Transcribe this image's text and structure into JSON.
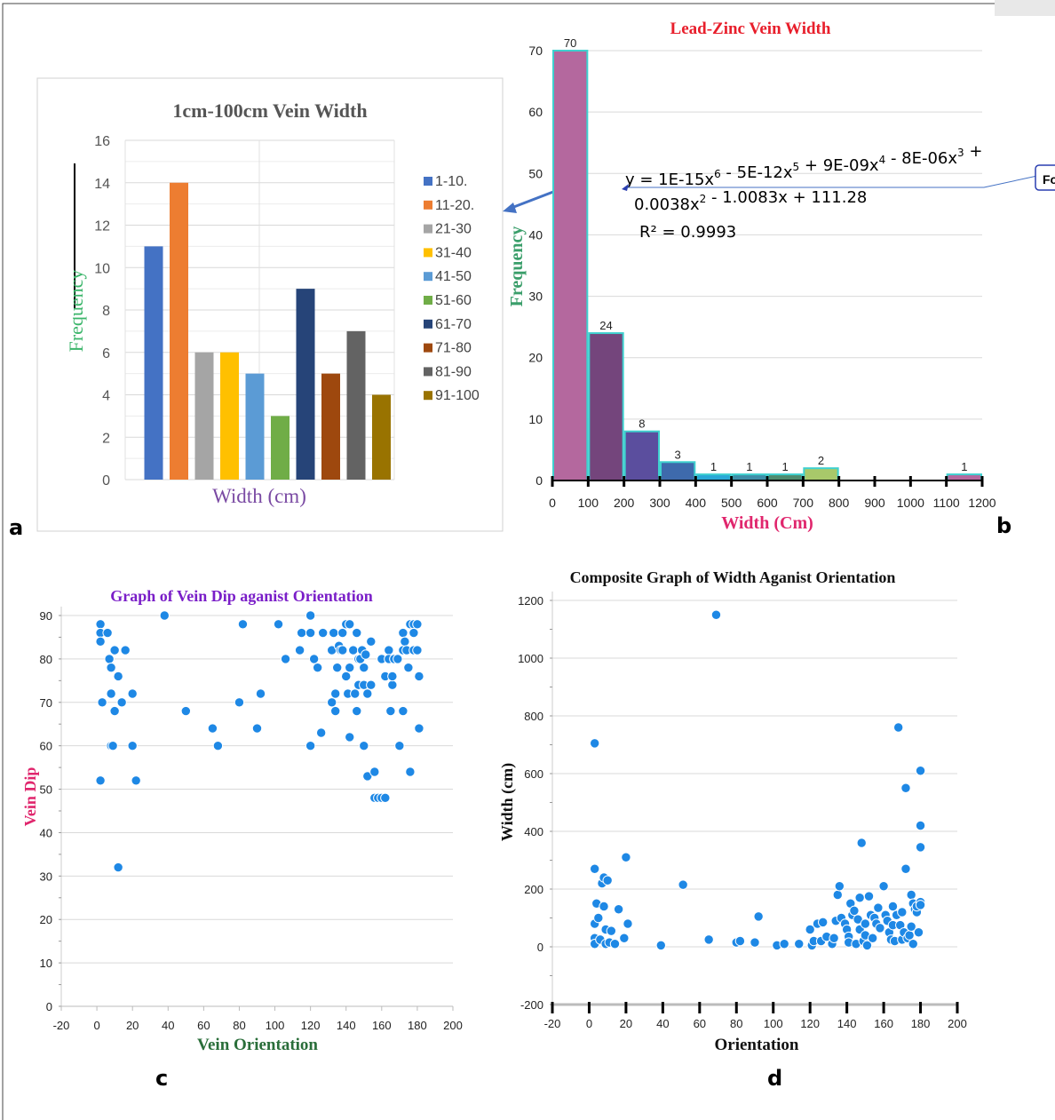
{
  "panel_labels": [
    "a",
    "b",
    "c",
    "d"
  ],
  "colors": {
    "a_bars": [
      "#4472c4",
      "#ed7d31",
      "#a5a5a5",
      "#ffc000",
      "#5b9bd5",
      "#70ad47",
      "#264478",
      "#9e480e",
      "#636363",
      "#997300"
    ],
    "b_bars": [
      "#b4689e",
      "#74457c",
      "#5b4e9e",
      "#3e6aac",
      "#29a8d6",
      "#3e8ea8",
      "#4e8a6e",
      "#a8c86a",
      "#67c2a6",
      "#5aaad6",
      "#7ac0b6",
      "#b4689e"
    ],
    "b_bar_edge": "#3fd0cf",
    "scatter_point": "#1e88e5",
    "b_title": "#e81e2b",
    "b_axis_label": "#e0266d",
    "b_ylabel": "#3a9e6a",
    "a_title": "#555555",
    "a_ylabel": "#3bb56a",
    "a_xlabel": "#7a4aa3",
    "c_title": "#7a1ec8",
    "c_ylabel": "#e0266d",
    "c_xlabel": "#2a6e3a",
    "d_title": "#111111",
    "arrow": "#4472c4"
  },
  "chart_data": [
    {
      "id": "a",
      "type": "bar",
      "title": "1cm-100cm Vein Width",
      "xlabel": "Width (cm)",
      "ylabel": "Frequency",
      "ylim": [
        0,
        16
      ],
      "yticks": [
        "0",
        "2",
        "4",
        "6",
        "8",
        "10",
        "12",
        "14",
        "16"
      ],
      "categories": [
        "1-10.",
        "11-20.",
        "21-30",
        "31-40",
        "41-50",
        "51-60",
        "61-70",
        "71-80",
        "81-90",
        "91-100"
      ],
      "values": [
        11,
        14,
        6,
        6,
        5,
        3,
        9,
        5,
        7,
        4
      ],
      "legend": "right",
      "grid": true
    },
    {
      "id": "b",
      "type": "bar",
      "title": "Lead-Zinc Vein Width",
      "xlabel": "Width (Cm)",
      "ylabel": "Frequency",
      "ylim": [
        0,
        70
      ],
      "xlim": [
        0,
        1200
      ],
      "yticks": [
        "0",
        "10",
        "20",
        "30",
        "40",
        "50",
        "60",
        "70"
      ],
      "xticks": [
        "0",
        "100",
        "200",
        "300",
        "400",
        "500",
        "600",
        "700",
        "800",
        "900",
        "1000",
        "1100",
        "1200"
      ],
      "bins": [
        [
          0,
          100
        ],
        [
          100,
          200
        ],
        [
          200,
          300
        ],
        [
          300,
          400
        ],
        [
          400,
          500
        ],
        [
          500,
          600
        ],
        [
          600,
          700
        ],
        [
          700,
          800
        ],
        [
          800,
          900
        ],
        [
          900,
          1000
        ],
        [
          1000,
          1100
        ],
        [
          1100,
          1200
        ]
      ],
      "values": [
        70,
        24,
        8,
        3,
        1,
        1,
        1,
        2,
        0,
        0,
        0,
        1
      ],
      "data_labels": [
        "70",
        "24",
        "8",
        "3",
        "1",
        "1",
        "1",
        "2",
        "",
        "",
        "",
        "1"
      ],
      "equation_line1": "y = 1E-15x",
      "eq_terms": [
        {
          "text": "y = 1E-15x",
          "sup": "6"
        },
        {
          "text": " - 5E-12x",
          "sup": "5"
        },
        {
          "text": " + 9E-09x",
          "sup": "4"
        },
        {
          "text": " - 8E-06x",
          "sup": "3"
        },
        {
          "text": " +",
          "sup": ""
        }
      ],
      "eq_line2": [
        {
          "text": "0.0038x",
          "sup": "2"
        },
        {
          "text": " - 1.0083x + 111.28",
          "sup": ""
        }
      ],
      "r_squared": "R² = 0.9993",
      "callout_text": "Fo",
      "grid": true
    },
    {
      "id": "c",
      "type": "scatter",
      "title": "Graph of Vein Dip aganist Orientation",
      "xlabel": "Vein Orientation",
      "ylabel": "Vein Dip",
      "xlim": [
        -20,
        200
      ],
      "ylim": [
        0,
        90
      ],
      "xticks": [
        "-20",
        "0",
        "20",
        "40",
        "60",
        "80",
        "100",
        "120",
        "140",
        "160",
        "180",
        "200"
      ],
      "yticks": [
        "0",
        "10",
        "20",
        "30",
        "40",
        "50",
        "60",
        "70",
        "80",
        "90"
      ],
      "points": [
        [
          2,
          88
        ],
        [
          2,
          86
        ],
        [
          2,
          84
        ],
        [
          3,
          70
        ],
        [
          2,
          52
        ],
        [
          6,
          86
        ],
        [
          7,
          80
        ],
        [
          8,
          78
        ],
        [
          8,
          72
        ],
        [
          8,
          60
        ],
        [
          9,
          60
        ],
        [
          10,
          82
        ],
        [
          10,
          68
        ],
        [
          12,
          76
        ],
        [
          12,
          32
        ],
        [
          14,
          70
        ],
        [
          16,
          82
        ],
        [
          20,
          72
        ],
        [
          20,
          60
        ],
        [
          22,
          52
        ],
        [
          38,
          90
        ],
        [
          50,
          68
        ],
        [
          65,
          64
        ],
        [
          68,
          60
        ],
        [
          80,
          70
        ],
        [
          82,
          88
        ],
        [
          90,
          64
        ],
        [
          92,
          72
        ],
        [
          102,
          88
        ],
        [
          106,
          80
        ],
        [
          114,
          82
        ],
        [
          115,
          86
        ],
        [
          120,
          86
        ],
        [
          120,
          90
        ],
        [
          120,
          60
        ],
        [
          122,
          80
        ],
        [
          124,
          78
        ],
        [
          126,
          63
        ],
        [
          127,
          86
        ],
        [
          132,
          82
        ],
        [
          132,
          70
        ],
        [
          133,
          86
        ],
        [
          134,
          68
        ],
        [
          134,
          72
        ],
        [
          135,
          78
        ],
        [
          136,
          83
        ],
        [
          137,
          82
        ],
        [
          138,
          86
        ],
        [
          138,
          82
        ],
        [
          140,
          76
        ],
        [
          140,
          88
        ],
        [
          141,
          72
        ],
        [
          142,
          88
        ],
        [
          142,
          62
        ],
        [
          142,
          78
        ],
        [
          144,
          82
        ],
        [
          145,
          72
        ],
        [
          146,
          68
        ],
        [
          146,
          86
        ],
        [
          147,
          80
        ],
        [
          147,
          74
        ],
        [
          148,
          80
        ],
        [
          149,
          82
        ],
        [
          150,
          74
        ],
        [
          150,
          78
        ],
        [
          150,
          60
        ],
        [
          151,
          81
        ],
        [
          152,
          53
        ],
        [
          152,
          72
        ],
        [
          154,
          84
        ],
        [
          154,
          74
        ],
        [
          156,
          54
        ],
        [
          156,
          48
        ],
        [
          158,
          48
        ],
        [
          160,
          80
        ],
        [
          160,
          48
        ],
        [
          162,
          76
        ],
        [
          162,
          48
        ],
        [
          164,
          82
        ],
        [
          164,
          80
        ],
        [
          165,
          68
        ],
        [
          166,
          74
        ],
        [
          166,
          76
        ],
        [
          167,
          80
        ],
        [
          169,
          80
        ],
        [
          170,
          60
        ],
        [
          172,
          68
        ],
        [
          172,
          82
        ],
        [
          172,
          86
        ],
        [
          173,
          84
        ],
        [
          174,
          82
        ],
        [
          175,
          78
        ],
        [
          176,
          54
        ],
        [
          176,
          88
        ],
        [
          178,
          88
        ],
        [
          178,
          86
        ],
        [
          178,
          82
        ],
        [
          180,
          88
        ],
        [
          180,
          82
        ],
        [
          181,
          76
        ],
        [
          181,
          64
        ]
      ],
      "grid": true
    },
    {
      "id": "d",
      "type": "scatter",
      "title": "Composite Graph of Width Aganist Orientation",
      "xlabel": "Orientation",
      "ylabel": "Width (cm)",
      "xlim": [
        -20,
        200
      ],
      "ylim": [
        -200,
        1200
      ],
      "xticks": [
        "-20",
        "0",
        "20",
        "40",
        "60",
        "80",
        "100",
        "120",
        "140",
        "160",
        "180",
        "200"
      ],
      "yticks": [
        "-200",
        "0",
        "200",
        "400",
        "600",
        "800",
        "1000",
        "1200"
      ],
      "points": [
        [
          3,
          705
        ],
        [
          3,
          270
        ],
        [
          3,
          80
        ],
        [
          3,
          30
        ],
        [
          3,
          10
        ],
        [
          4,
          150
        ],
        [
          5,
          100
        ],
        [
          6,
          25
        ],
        [
          7,
          220
        ],
        [
          8,
          240
        ],
        [
          8,
          140
        ],
        [
          9,
          60
        ],
        [
          9,
          10
        ],
        [
          10,
          230
        ],
        [
          11,
          15
        ],
        [
          12,
          55
        ],
        [
          14,
          10
        ],
        [
          16,
          130
        ],
        [
          19,
          30
        ],
        [
          20,
          310
        ],
        [
          21,
          80
        ],
        [
          39,
          5
        ],
        [
          51,
          215
        ],
        [
          65,
          25
        ],
        [
          69,
          1150
        ],
        [
          80,
          15
        ],
        [
          82,
          20
        ],
        [
          90,
          15
        ],
        [
          92,
          105
        ],
        [
          102,
          5
        ],
        [
          106,
          10
        ],
        [
          114,
          10
        ],
        [
          120,
          60
        ],
        [
          121,
          5
        ],
        [
          122,
          20
        ],
        [
          124,
          80
        ],
        [
          126,
          20
        ],
        [
          127,
          85
        ],
        [
          129,
          35
        ],
        [
          132,
          10
        ],
        [
          133,
          30
        ],
        [
          134,
          90
        ],
        [
          135,
          180
        ],
        [
          136,
          210
        ],
        [
          137,
          100
        ],
        [
          139,
          80
        ],
        [
          140,
          60
        ],
        [
          141,
          35
        ],
        [
          141,
          15
        ],
        [
          142,
          150
        ],
        [
          143,
          110
        ],
        [
          144,
          125
        ],
        [
          145,
          10
        ],
        [
          146,
          95
        ],
        [
          147,
          170
        ],
        [
          147,
          60
        ],
        [
          148,
          360
        ],
        [
          149,
          20
        ],
        [
          150,
          80
        ],
        [
          150,
          40
        ],
        [
          151,
          5
        ],
        [
          152,
          175
        ],
        [
          153,
          110
        ],
        [
          154,
          30
        ],
        [
          155,
          100
        ],
        [
          156,
          80
        ],
        [
          157,
          135
        ],
        [
          158,
          65
        ],
        [
          160,
          210
        ],
        [
          161,
          110
        ],
        [
          162,
          90
        ],
        [
          163,
          50
        ],
        [
          164,
          25
        ],
        [
          165,
          140
        ],
        [
          165,
          75
        ],
        [
          166,
          20
        ],
        [
          167,
          110
        ],
        [
          168,
          760
        ],
        [
          169,
          75
        ],
        [
          170,
          25
        ],
        [
          170,
          120
        ],
        [
          171,
          50
        ],
        [
          172,
          550
        ],
        [
          172,
          270
        ],
        [
          173,
          30
        ],
        [
          174,
          40
        ],
        [
          175,
          180
        ],
        [
          175,
          70
        ],
        [
          176,
          10
        ],
        [
          176,
          150
        ],
        [
          177,
          130
        ],
        [
          178,
          120
        ],
        [
          178,
          140
        ],
        [
          179,
          50
        ],
        [
          180,
          610
        ],
        [
          180,
          420
        ],
        [
          180,
          345
        ],
        [
          180,
          155
        ],
        [
          180,
          145
        ]
      ],
      "grid": true
    }
  ]
}
